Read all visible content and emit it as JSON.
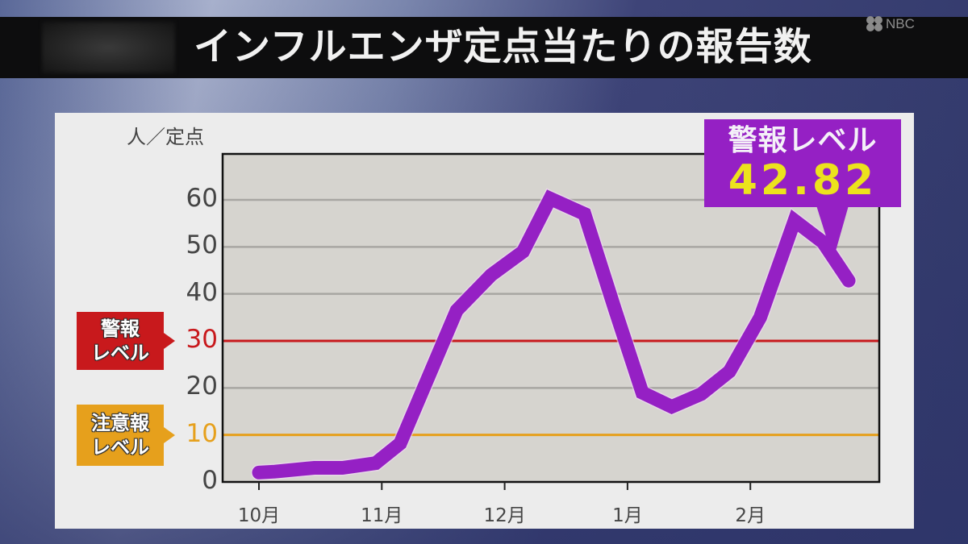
{
  "header": {
    "title": "インフルエンザ定点当たりの報告数",
    "watermark": "NBC"
  },
  "chart_data": {
    "type": "line",
    "title": "インフルエンザ定点当たりの報告数",
    "xlabel": "",
    "ylabel": "人／定点",
    "ylim": [
      0,
      65
    ],
    "yticks": [
      "0",
      "10",
      "20",
      "30",
      "40",
      "50",
      "60"
    ],
    "xticks": [
      "10月",
      "11月",
      "12月",
      "1月",
      "2月"
    ],
    "grid": true,
    "series": [
      {
        "name": "定点当たり報告数",
        "color": "#9520c4",
        "x": [
          0.0,
          0.13,
          0.45,
          0.68,
          0.95,
          1.15,
          1.61,
          1.89,
          2.15,
          2.37,
          2.65,
          2.9,
          3.12,
          3.36,
          3.6,
          3.83,
          4.08,
          4.36,
          4.59,
          4.8
        ],
        "values": [
          2.0,
          2.2,
          3.0,
          3.0,
          4.0,
          8.2,
          36.5,
          44.0,
          49.0,
          60.3,
          57.0,
          36.5,
          19.0,
          16.0,
          18.7,
          23.5,
          35.0,
          55.6,
          51.0,
          42.82
        ]
      }
    ],
    "reference_lines": [
      {
        "name": "警報レベル",
        "value": 30,
        "color": "#c8191c"
      },
      {
        "name": "注意報レベル",
        "value": 10,
        "color": "#e6a01c"
      }
    ],
    "annotations": [
      {
        "text": "警報レベル 42.82",
        "target_index": 19
      }
    ]
  },
  "labels": {
    "unit": "人／定点",
    "alarm_tag": [
      "警報",
      "レベル"
    ],
    "caution_tag": [
      "注意報",
      "レベル"
    ],
    "callout_label": "警報レベル",
    "callout_value": "42.82"
  },
  "colors": {
    "line": "#9520c4",
    "alarm": "#c8191c",
    "caution": "#e6a01c",
    "plot_bg": "#d6d4cf",
    "grid": "#a8a6a2",
    "callout_value": "#ece21d"
  }
}
